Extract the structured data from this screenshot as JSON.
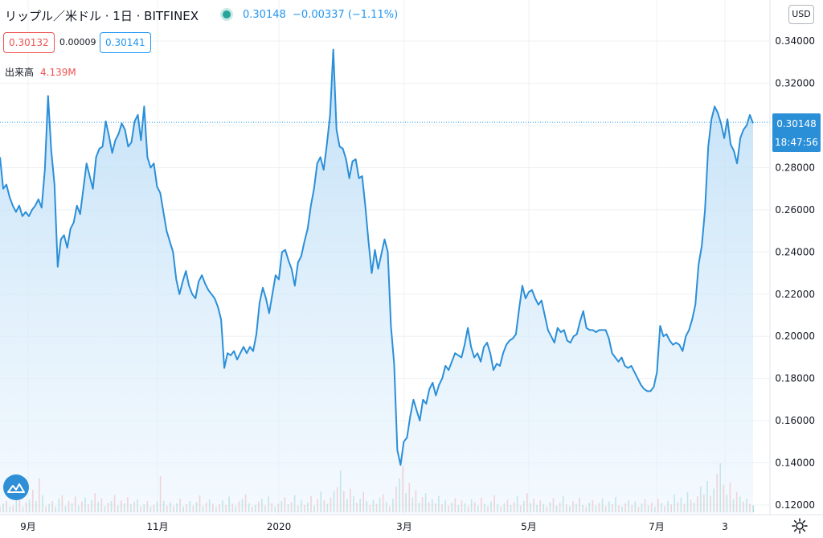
{
  "header": {
    "symbol_title": "リップル／米ドル · 1日 · BITFINEX",
    "last_price": "0.30148",
    "change": "−0.00337 (−1.11%)",
    "sell_price": "0.30132",
    "spread": "0.00009",
    "buy_price": "0.30141",
    "volume_label": "出来高",
    "volume_value": "4.139M",
    "currency_button": "USD"
  },
  "price_tag": {
    "price": "0.30148",
    "countdown": "18:47:56"
  },
  "colors": {
    "line": "#2b8fd8",
    "fill": "#d6ebfb",
    "up_vol": "#26a69a",
    "down_vol": "#ef5350",
    "sell": "#ef5350",
    "buy": "#2196f3"
  },
  "icons": {
    "logo": "tradingview-logo-icon",
    "settings": "gear-icon",
    "live": "live-dot-icon"
  },
  "chart_data": {
    "type": "area",
    "title": "リップル／米ドル · 1日 · BITFINEX",
    "x_tick_labels": [
      "9月",
      "11月",
      "2020",
      "3月",
      "5月",
      "7月",
      "3"
    ],
    "y_tick_labels": [
      "0.12000",
      "0.14000",
      "0.16000",
      "0.18000",
      "0.20000",
      "0.22000",
      "0.24000",
      "0.26000",
      "0.28000",
      "0.30000",
      "0.32000",
      "0.34000"
    ],
    "ylim": [
      0.12,
      0.36
    ],
    "grid": true,
    "series": [
      {
        "values": [
          0.285,
          0.27,
          0.272,
          0.266,
          0.262,
          0.259,
          0.262,
          0.257,
          0.259,
          0.257,
          0.26,
          0.262,
          0.265,
          0.261,
          0.279,
          0.314,
          0.288,
          0.272,
          0.233,
          0.246,
          0.248,
          0.242,
          0.251,
          0.254,
          0.262,
          0.258,
          0.27,
          0.282,
          0.276,
          0.27,
          0.285,
          0.289,
          0.29,
          0.302,
          0.295,
          0.287,
          0.293,
          0.296,
          0.301,
          0.298,
          0.29,
          0.292,
          0.302,
          0.305,
          0.293,
          0.309,
          0.285,
          0.28,
          0.282,
          0.271,
          0.268,
          0.259,
          0.25,
          0.245,
          0.24,
          0.227,
          0.22,
          0.226,
          0.231,
          0.224,
          0.22,
          0.218,
          0.226,
          0.229,
          0.225,
          0.222,
          0.22,
          0.218,
          0.214,
          0.208,
          0.185,
          0.192,
          0.191,
          0.193,
          0.189,
          0.192,
          0.195,
          0.192,
          0.195,
          0.193,
          0.201,
          0.216,
          0.223,
          0.218,
          0.211,
          0.22,
          0.229,
          0.227,
          0.24,
          0.241,
          0.236,
          0.232,
          0.224,
          0.235,
          0.238,
          0.245,
          0.251,
          0.262,
          0.27,
          0.282,
          0.285,
          0.279,
          0.291,
          0.305,
          0.336,
          0.298,
          0.29,
          0.289,
          0.284,
          0.275,
          0.283,
          0.284,
          0.275,
          0.276,
          0.262,
          0.245,
          0.23,
          0.241,
          0.232,
          0.239,
          0.246,
          0.24,
          0.205,
          0.187,
          0.146,
          0.139,
          0.15,
          0.152,
          0.162,
          0.17,
          0.165,
          0.16,
          0.17,
          0.168,
          0.175,
          0.178,
          0.172,
          0.177,
          0.18,
          0.186,
          0.184,
          0.188,
          0.192,
          0.191,
          0.19,
          0.196,
          0.204,
          0.195,
          0.19,
          0.192,
          0.188,
          0.195,
          0.197,
          0.192,
          0.184,
          0.187,
          0.186,
          0.192,
          0.196,
          0.198,
          0.199,
          0.201,
          0.213,
          0.224,
          0.218,
          0.221,
          0.222,
          0.218,
          0.215,
          0.217,
          0.21,
          0.203,
          0.2,
          0.197,
          0.204,
          0.202,
          0.203,
          0.198,
          0.197,
          0.2,
          0.201,
          0.207,
          0.212,
          0.204,
          0.203,
          0.203,
          0.202,
          0.203,
          0.203,
          0.203,
          0.199,
          0.192,
          0.19,
          0.188,
          0.19,
          0.186,
          0.185,
          0.186,
          0.183,
          0.18,
          0.177,
          0.175,
          0.174,
          0.174,
          0.176,
          0.183,
          0.205,
          0.2,
          0.201,
          0.198,
          0.196,
          0.197,
          0.196,
          0.193,
          0.2,
          0.203,
          0.208,
          0.215,
          0.234,
          0.243,
          0.26,
          0.29,
          0.303,
          0.309,
          0.306,
          0.301,
          0.294,
          0.303,
          0.291,
          0.288,
          0.282,
          0.294,
          0.298,
          0.3,
          0.305,
          0.301
        ]
      }
    ],
    "volume_ylim": [
      0,
      10
    ],
    "volume": [
      [
        1,
        "d"
      ],
      [
        1.5,
        "u"
      ],
      [
        2,
        "d"
      ],
      [
        1,
        "u"
      ],
      [
        1.2,
        "d"
      ],
      [
        3,
        "u"
      ],
      [
        2.5,
        "d"
      ],
      [
        1,
        "u"
      ],
      [
        1.8,
        "d"
      ],
      [
        2.2,
        "u"
      ],
      [
        4,
        "d"
      ],
      [
        2,
        "u"
      ],
      [
        6,
        "d"
      ],
      [
        3,
        "u"
      ],
      [
        1,
        "d"
      ],
      [
        1.5,
        "u"
      ],
      [
        2,
        "d"
      ],
      [
        1,
        "u"
      ],
      [
        2.4,
        "u"
      ],
      [
        3,
        "d"
      ],
      [
        1.1,
        "u"
      ],
      [
        2,
        "d"
      ],
      [
        1.6,
        "u"
      ],
      [
        2.8,
        "d"
      ],
      [
        1.2,
        "u"
      ],
      [
        1.9,
        "d"
      ],
      [
        2.6,
        "u"
      ],
      [
        1.4,
        "d"
      ],
      [
        2.2,
        "u"
      ],
      [
        3.4,
        "d"
      ],
      [
        1.8,
        "u"
      ],
      [
        2.5,
        "d"
      ],
      [
        1.1,
        "u"
      ],
      [
        1.7,
        "d"
      ],
      [
        2,
        "u"
      ],
      [
        3.1,
        "d"
      ],
      [
        1.2,
        "u"
      ],
      [
        2.1,
        "d"
      ],
      [
        1.6,
        "u"
      ],
      [
        2.7,
        "d"
      ],
      [
        1.4,
        "u"
      ],
      [
        1.9,
        "d"
      ],
      [
        2.3,
        "u"
      ],
      [
        1,
        "d"
      ],
      [
        1.4,
        "u"
      ],
      [
        2,
        "d"
      ],
      [
        1,
        "u"
      ],
      [
        1.3,
        "d"
      ],
      [
        1.9,
        "u"
      ],
      [
        6.4,
        "d"
      ],
      [
        2,
        "u"
      ],
      [
        1.2,
        "d"
      ],
      [
        1.8,
        "u"
      ],
      [
        1.1,
        "d"
      ],
      [
        1.6,
        "u"
      ],
      [
        2.4,
        "d"
      ],
      [
        1,
        "u"
      ],
      [
        1.4,
        "d"
      ],
      [
        2,
        "u"
      ],
      [
        1.2,
        "d"
      ],
      [
        1.8,
        "u"
      ],
      [
        3,
        "d"
      ],
      [
        1.1,
        "u"
      ],
      [
        1.7,
        "d"
      ],
      [
        2.3,
        "u"
      ],
      [
        1.5,
        "d"
      ],
      [
        1,
        "u"
      ],
      [
        1.4,
        "d"
      ],
      [
        2.1,
        "u"
      ],
      [
        1.3,
        "d"
      ],
      [
        2.8,
        "u"
      ],
      [
        1.5,
        "d"
      ],
      [
        1.1,
        "u"
      ],
      [
        1.9,
        "d"
      ],
      [
        2.3,
        "u"
      ],
      [
        3.2,
        "d"
      ],
      [
        1.6,
        "u"
      ],
      [
        1,
        "d"
      ],
      [
        1.3,
        "u"
      ],
      [
        1.9,
        "d"
      ],
      [
        2.4,
        "u"
      ],
      [
        1.2,
        "d"
      ],
      [
        2.8,
        "u"
      ],
      [
        1.6,
        "d"
      ],
      [
        1,
        "u"
      ],
      [
        1.5,
        "d"
      ],
      [
        2,
        "u"
      ],
      [
        2.7,
        "d"
      ],
      [
        1.4,
        "u"
      ],
      [
        1.8,
        "d"
      ],
      [
        3,
        "u"
      ],
      [
        1.2,
        "d"
      ],
      [
        2.1,
        "u"
      ],
      [
        1.3,
        "d"
      ],
      [
        1.7,
        "u"
      ],
      [
        2.9,
        "d"
      ],
      [
        1.2,
        "u"
      ],
      [
        2.3,
        "d"
      ],
      [
        3.7,
        "u"
      ],
      [
        2.1,
        "d"
      ],
      [
        1.5,
        "u"
      ],
      [
        2.6,
        "d"
      ],
      [
        3.8,
        "u"
      ],
      [
        4.4,
        "d"
      ],
      [
        7.4,
        "u"
      ],
      [
        3.8,
        "d"
      ],
      [
        2.3,
        "u"
      ],
      [
        4.2,
        "d"
      ],
      [
        2.9,
        "u"
      ],
      [
        1.7,
        "d"
      ],
      [
        2.4,
        "u"
      ],
      [
        3.6,
        "d"
      ],
      [
        2,
        "u"
      ],
      [
        1.3,
        "d"
      ],
      [
        2.2,
        "u"
      ],
      [
        1.5,
        "d"
      ],
      [
        2.6,
        "u"
      ],
      [
        3.2,
        "d"
      ],
      [
        1.8,
        "u"
      ],
      [
        1.1,
        "d"
      ],
      [
        2.4,
        "u"
      ],
      [
        4.6,
        "d"
      ],
      [
        6,
        "u"
      ],
      [
        8.2,
        "d"
      ],
      [
        3.4,
        "u"
      ],
      [
        5.2,
        "d"
      ],
      [
        2.6,
        "u"
      ],
      [
        3.9,
        "d"
      ],
      [
        1.7,
        "u"
      ],
      [
        2.7,
        "d"
      ],
      [
        3.4,
        "u"
      ],
      [
        1.8,
        "d"
      ],
      [
        2.3,
        "u"
      ],
      [
        1.6,
        "d"
      ],
      [
        2.9,
        "u"
      ],
      [
        1.4,
        "d"
      ],
      [
        2.1,
        "u"
      ],
      [
        1.2,
        "d"
      ],
      [
        1.7,
        "u"
      ],
      [
        2.5,
        "d"
      ],
      [
        1.3,
        "u"
      ],
      [
        2.1,
        "d"
      ],
      [
        1.6,
        "u"
      ],
      [
        1.1,
        "d"
      ],
      [
        2.3,
        "u"
      ],
      [
        1.8,
        "d"
      ],
      [
        1.2,
        "u"
      ],
      [
        2.6,
        "d"
      ],
      [
        1.5,
        "u"
      ],
      [
        1.1,
        "d"
      ],
      [
        1.9,
        "u"
      ],
      [
        3,
        "d"
      ],
      [
        1.4,
        "u"
      ],
      [
        1,
        "d"
      ],
      [
        1.6,
        "u"
      ],
      [
        2.2,
        "d"
      ],
      [
        1.3,
        "u"
      ],
      [
        1.8,
        "d"
      ],
      [
        2.9,
        "u"
      ],
      [
        1.2,
        "d"
      ],
      [
        2,
        "u"
      ],
      [
        3.4,
        "d"
      ],
      [
        1.6,
        "u"
      ],
      [
        2.4,
        "d"
      ],
      [
        1.3,
        "u"
      ],
      [
        2.1,
        "d"
      ],
      [
        1.5,
        "u"
      ],
      [
        1,
        "d"
      ],
      [
        1.8,
        "u"
      ],
      [
        2.5,
        "d"
      ],
      [
        1.2,
        "u"
      ],
      [
        1.7,
        "d"
      ],
      [
        2.9,
        "u"
      ],
      [
        1.4,
        "d"
      ],
      [
        1.1,
        "u"
      ],
      [
        2,
        "d"
      ],
      [
        1.5,
        "u"
      ],
      [
        2.6,
        "d"
      ],
      [
        1.3,
        "u"
      ],
      [
        1,
        "d"
      ],
      [
        1.7,
        "u"
      ],
      [
        2.2,
        "d"
      ],
      [
        1.2,
        "u"
      ],
      [
        1.6,
        "d"
      ],
      [
        2.4,
        "u"
      ],
      [
        1.1,
        "d"
      ],
      [
        1.9,
        "u"
      ],
      [
        1.4,
        "d"
      ],
      [
        2.7,
        "u"
      ],
      [
        1.2,
        "d"
      ],
      [
        1,
        "u"
      ],
      [
        1.6,
        "d"
      ],
      [
        2.1,
        "u"
      ],
      [
        1.3,
        "d"
      ],
      [
        1.9,
        "u"
      ],
      [
        1,
        "d"
      ],
      [
        1.5,
        "u"
      ],
      [
        2.3,
        "d"
      ],
      [
        1.2,
        "u"
      ],
      [
        1.7,
        "d"
      ],
      [
        1,
        "u"
      ],
      [
        2.4,
        "d"
      ],
      [
        1.6,
        "u"
      ],
      [
        1.1,
        "d"
      ],
      [
        2,
        "u"
      ],
      [
        1.4,
        "d"
      ],
      [
        3.2,
        "u"
      ],
      [
        1.8,
        "d"
      ],
      [
        2.6,
        "u"
      ],
      [
        1.5,
        "d"
      ],
      [
        3.6,
        "u"
      ],
      [
        2.2,
        "d"
      ],
      [
        1.7,
        "u"
      ],
      [
        2.8,
        "d"
      ],
      [
        4.6,
        "u"
      ],
      [
        3.2,
        "d"
      ],
      [
        5.6,
        "u"
      ],
      [
        2.9,
        "d"
      ],
      [
        4.2,
        "u"
      ],
      [
        6.8,
        "d"
      ],
      [
        8.7,
        "u"
      ],
      [
        4.9,
        "d"
      ],
      [
        3.1,
        "u"
      ],
      [
        5.3,
        "d"
      ],
      [
        2.3,
        "u"
      ],
      [
        3.6,
        "d"
      ],
      [
        2.8,
        "u"
      ],
      [
        1.9,
        "d"
      ],
      [
        2.4,
        "u"
      ],
      [
        1.5,
        "d"
      ],
      [
        1.2,
        "u"
      ]
    ]
  }
}
